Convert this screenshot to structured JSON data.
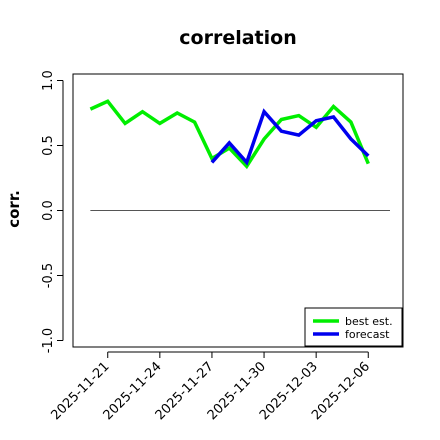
{
  "chart_data": {
    "type": "line",
    "title": "correlation",
    "xlabel": "",
    "ylabel": "corr.",
    "ylim": [
      -1.05,
      1.05
    ],
    "yticks": [
      {
        "value": -1.0,
        "label": "-1.0"
      },
      {
        "value": -0.5,
        "label": "-0.5"
      },
      {
        "value": 0.0,
        "label": "0.0"
      },
      {
        "value": 0.5,
        "label": "0.5"
      },
      {
        "value": 1.0,
        "label": "1.0"
      }
    ],
    "xticks": [
      {
        "value": "2025-11-21",
        "label": "2025-11-21",
        "color": "#000000"
      },
      {
        "value": "2025-11-24",
        "label": "2025-11-24",
        "color": "#000000"
      },
      {
        "value": "2025-11-27",
        "label": "2025-11-27",
        "color": "#008000"
      },
      {
        "value": "2025-11-30",
        "label": "2025-11-30",
        "color": "#000000"
      },
      {
        "value": "2025-12-03",
        "label": "2025-12-03",
        "color": "#000000"
      },
      {
        "value": "2025-12-06",
        "label": "2025-12-06",
        "color": "#000000"
      }
    ],
    "xlim": [
      "2025-11-19",
      "2025-12-08"
    ],
    "hline": 0.0,
    "series": [
      {
        "name": "best est.",
        "color": "#00ee00",
        "points": [
          [
            "2025-11-20",
            0.78
          ],
          [
            "2025-11-21",
            0.84
          ],
          [
            "2025-11-22",
            0.67
          ],
          [
            "2025-11-23",
            0.76
          ],
          [
            "2025-11-24",
            0.67
          ],
          [
            "2025-11-25",
            0.75
          ],
          [
            "2025-11-26",
            0.68
          ],
          [
            "2025-11-27",
            0.4
          ],
          [
            "2025-11-28",
            0.48
          ],
          [
            "2025-11-29",
            0.34
          ],
          [
            "2025-11-30",
            0.55
          ],
          [
            "2025-12-01",
            0.7
          ],
          [
            "2025-12-02",
            0.73
          ],
          [
            "2025-12-03",
            0.64
          ],
          [
            "2025-12-04",
            0.8
          ],
          [
            "2025-12-05",
            0.68
          ],
          [
            "2025-12-06",
            0.36
          ]
        ]
      },
      {
        "name": "forecast",
        "color": "#0000ee",
        "points": [
          [
            "2025-11-27",
            0.37
          ],
          [
            "2025-11-28",
            0.52
          ],
          [
            "2025-11-29",
            0.37
          ],
          [
            "2025-11-30",
            0.76
          ],
          [
            "2025-12-01",
            0.61
          ],
          [
            "2025-12-02",
            0.58
          ],
          [
            "2025-12-03",
            0.69
          ],
          [
            "2025-12-04",
            0.72
          ],
          [
            "2025-12-05",
            0.55
          ],
          [
            "2025-12-06",
            0.42
          ]
        ]
      }
    ],
    "legend": "bottom-right"
  }
}
